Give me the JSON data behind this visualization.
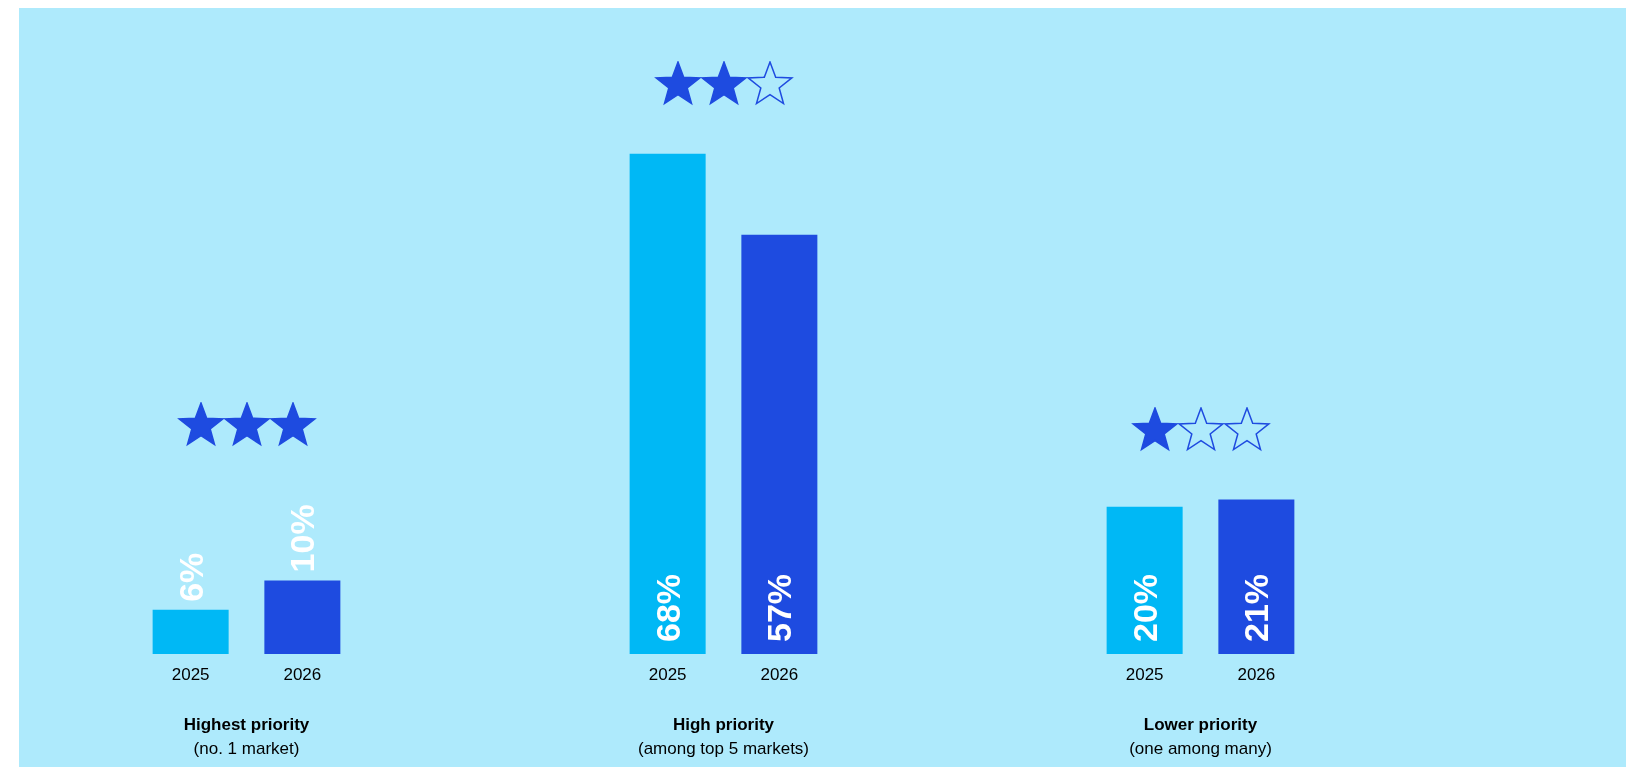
{
  "chart_data": {
    "type": "bar",
    "categories": [
      "Highest priority\n(no. 1 market)",
      "High priority\n(among top 5 markets)",
      "Lower priority\n(one among many)"
    ],
    "series": [
      {
        "name": "2025",
        "color": "#00b8f5",
        "values": [
          6,
          68,
          20
        ],
        "value_labels": [
          "6%",
          "68%",
          "20%"
        ]
      },
      {
        "name": "2026",
        "color": "#1e4be0",
        "values": [
          10,
          57,
          21
        ],
        "value_labels": [
          "10%",
          "57%",
          "21%"
        ]
      }
    ],
    "tick_labels": "x",
    "grid": false,
    "legend": false
  }
}
